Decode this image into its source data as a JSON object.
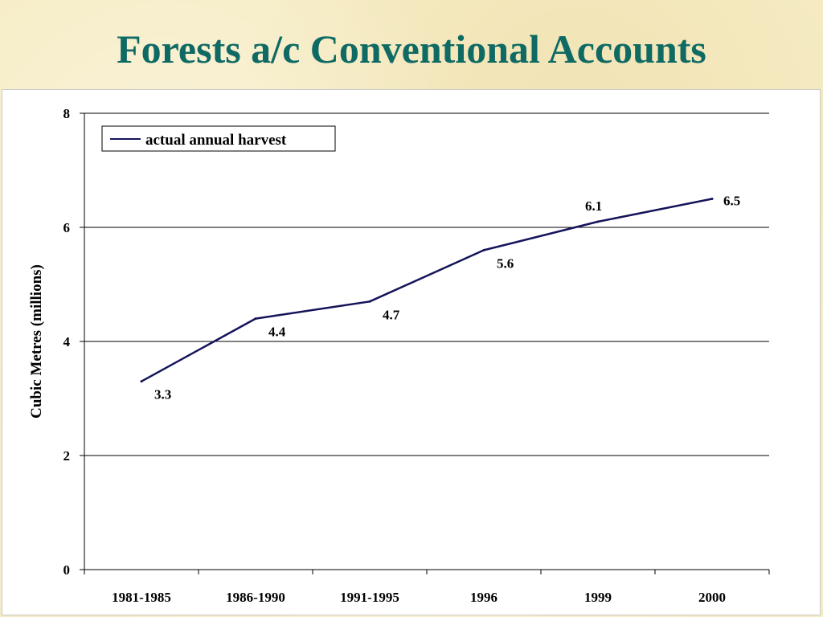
{
  "slide": {
    "title": "Forests a/c Conventional Accounts"
  },
  "chart_data": {
    "type": "line",
    "title": "",
    "xlabel": "",
    "ylabel": "Cubic Metres (millions)",
    "categories": [
      "1981-1985",
      "1986-1990",
      "1991-1995",
      "1996",
      "1999",
      "2000"
    ],
    "yticks": [
      "0",
      "2",
      "4",
      "6",
      "8"
    ],
    "ylim": [
      0,
      8
    ],
    "grid": true,
    "legend": "top-left",
    "series": [
      {
        "name": "actual annual harvest",
        "values": [
          3.3,
          4.4,
          4.7,
          5.6,
          6.1,
          6.5
        ],
        "labels": [
          "3.3",
          "4.4",
          "4.7",
          "5.6",
          "6.1",
          "6.5"
        ],
        "color": "#14145a"
      }
    ]
  }
}
